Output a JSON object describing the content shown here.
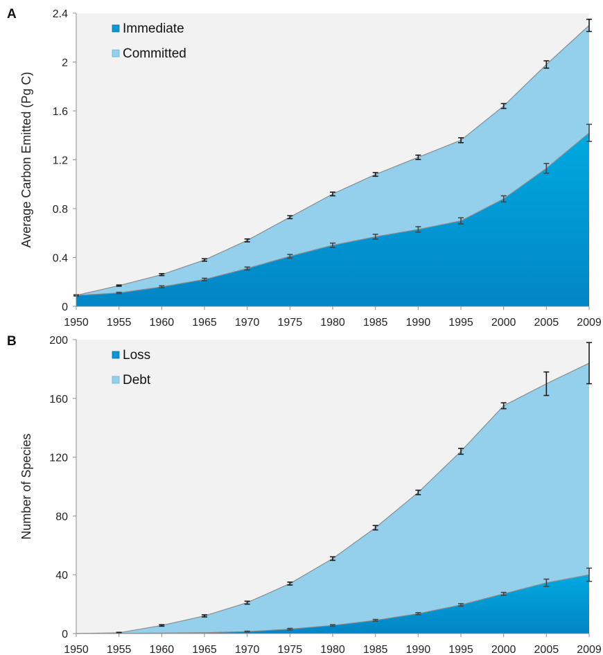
{
  "colors": {
    "plot_background": "#f2f2f2",
    "committed_fill": "#94cfeb",
    "immediate_fill_top": "#00a9e0",
    "immediate_fill_bottom": "#0285c5",
    "series_line": "#8c8c8c",
    "error_bar": "#1a1a1a"
  },
  "chart_data": [
    {
      "panel_label": "A",
      "type": "area",
      "ylabel": "Average Carbon Emitted (Pg C)",
      "xlabel": "",
      "x": [
        "1950",
        "1955",
        "1960",
        "1965",
        "1970",
        "1975",
        "1980",
        "1985",
        "1990",
        "1995",
        "2000",
        "2005",
        "2009"
      ],
      "ylim": [
        0,
        2.4
      ],
      "yticks": [
        "0",
        "0.4",
        "0.8",
        "1.2",
        "1.6",
        "2",
        "2.4"
      ],
      "legend_position": "top-left",
      "series": [
        {
          "name": "Immediate",
          "values": [
            0.09,
            0.11,
            0.16,
            0.22,
            0.31,
            0.41,
            0.5,
            0.57,
            0.63,
            0.7,
            0.88,
            1.13,
            1.42
          ],
          "error": [
            0.005,
            0.005,
            0.008,
            0.01,
            0.012,
            0.015,
            0.018,
            0.02,
            0.022,
            0.025,
            0.025,
            0.04,
            0.07
          ]
        },
        {
          "name": "Committed",
          "values": [
            0.09,
            0.17,
            0.26,
            0.38,
            0.54,
            0.73,
            0.92,
            1.08,
            1.22,
            1.36,
            1.64,
            1.98,
            2.3
          ],
          "error": [
            0.005,
            0.005,
            0.008,
            0.01,
            0.012,
            0.012,
            0.015,
            0.015,
            0.018,
            0.02,
            0.02,
            0.03,
            0.05
          ]
        }
      ]
    },
    {
      "panel_label": "B",
      "type": "area",
      "ylabel": "Number of Species",
      "xlabel": "",
      "x": [
        "1950",
        "1955",
        "1960",
        "1965",
        "1970",
        "1975",
        "1980",
        "1985",
        "1990",
        "1995",
        "2000",
        "2005",
        "2009"
      ],
      "ylim": [
        0,
        200
      ],
      "yticks": [
        "0",
        "40",
        "80",
        "120",
        "160",
        "200"
      ],
      "legend_position": "top-left",
      "series": [
        {
          "name": "Loss",
          "values": [
            0,
            0.1,
            0.3,
            0.6,
            1.3,
            3,
            5.5,
            9,
            13.5,
            19.5,
            27,
            34.5,
            40
          ],
          "error": [
            0,
            0,
            0,
            0,
            0.3,
            0.5,
            0.5,
            0.6,
            0.7,
            0.8,
            1,
            2.5,
            4.5
          ]
        },
        {
          "name": "Debt",
          "values": [
            0,
            0.5,
            5.5,
            12,
            21,
            34,
            51,
            72,
            96,
            124,
            155,
            170,
            184
          ],
          "error": [
            0,
            0.3,
            0.5,
            0.7,
            1,
            1,
            1.2,
            1.5,
            1.5,
            2,
            2,
            8,
            14
          ]
        }
      ]
    }
  ]
}
